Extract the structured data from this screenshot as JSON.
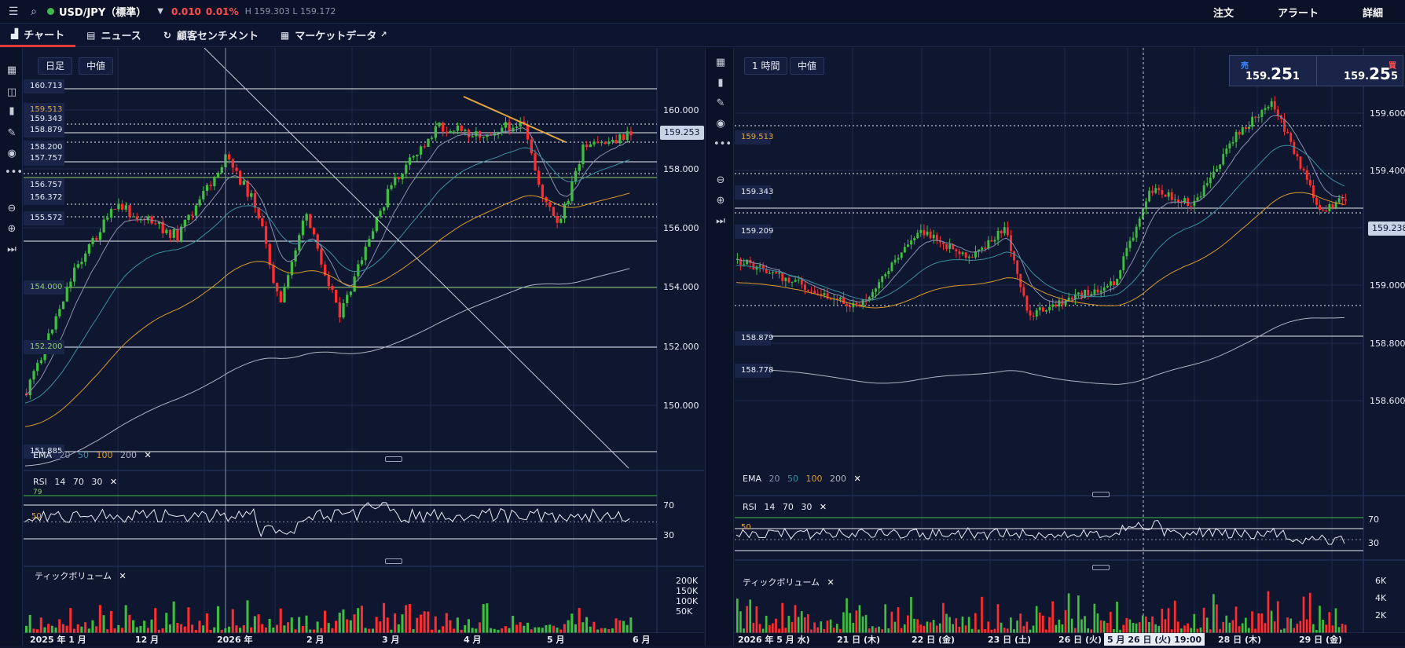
{
  "header": {
    "symbol": "USD/JPY（標準）",
    "change": "0.010",
    "change_pct": "0.01%",
    "hl": "H 159.303 L 159.172",
    "menu": [
      "注文",
      "アラート",
      "詳細"
    ]
  },
  "tabs": [
    {
      "label": "チャート",
      "icon": "chart-icon"
    },
    {
      "label": "ニュース",
      "icon": "news-icon"
    },
    {
      "label": "顧客センチメント",
      "icon": "refresh-icon"
    },
    {
      "label": "マーケットデータ",
      "icon": "clipboard-icon"
    }
  ],
  "trade": {
    "sell_label": "売",
    "sell_small": "159.",
    "sell_big": "25",
    "sell_last": "1",
    "buy_label": "買",
    "buy_small": "159.",
    "buy_big": "25",
    "buy_last": "5"
  },
  "left": {
    "timeframe": "日足",
    "price_type": "中値",
    "current": "159.253",
    "price_labels": [
      {
        "t": "160.713",
        "c": "w"
      },
      {
        "t": "159.513",
        "c": "or"
      },
      {
        "t": "159.343",
        "c": "w"
      },
      {
        "t": "158.879",
        "c": "w"
      },
      {
        "t": "158.200",
        "c": "w"
      },
      {
        "t": "157.757",
        "c": "w"
      },
      {
        "t": "156.757",
        "c": "w"
      },
      {
        "t": "156.372",
        "c": "w"
      },
      {
        "t": "155.572",
        "c": "w"
      },
      {
        "t": "154.000",
        "c": "gr"
      },
      {
        "t": "152.200",
        "c": "gr"
      },
      {
        "t": "151.885",
        "c": "w"
      }
    ],
    "yaxis": [
      "160.000",
      "158.000",
      "156.000",
      "154.000",
      "152.000",
      "150.000"
    ],
    "ema": {
      "label": "EMA",
      "p": [
        "20",
        "50",
        "100",
        "200"
      ]
    },
    "rsi": {
      "label": "RSI",
      "p": [
        "14",
        "70",
        "30"
      ],
      "levels": [
        "70",
        "30"
      ],
      "side": [
        "79",
        "50"
      ]
    },
    "vol": {
      "label": "ティックボリューム",
      "levels": [
        "200K",
        "150K",
        "100K",
        "50K"
      ]
    },
    "xaxis": [
      "2025 年 1 月",
      "12 月",
      "2026 年",
      "2 月",
      "3 月",
      "4 月",
      "5 月",
      "6 月"
    ]
  },
  "right": {
    "timeframe": "1 時間",
    "price_type": "中値",
    "current": "159.238",
    "price_labels": [
      {
        "t": "159.513",
        "c": "or"
      },
      {
        "t": "159.343",
        "c": "w"
      },
      {
        "t": "159.209",
        "c": "w"
      },
      {
        "t": "158.879",
        "c": "w"
      },
      {
        "t": "158.778",
        "c": "w"
      }
    ],
    "yaxis": [
      "159.600",
      "159.400",
      "159.200",
      "159.000",
      "158.800",
      "158.600"
    ],
    "ema": {
      "label": "EMA",
      "p": [
        "20",
        "50",
        "100",
        "200"
      ]
    },
    "rsi": {
      "label": "RSI",
      "p": [
        "14",
        "70",
        "30"
      ],
      "levels": [
        "70",
        "30"
      ],
      "side": [
        "50"
      ]
    },
    "vol": {
      "label": "ティックボリューム",
      "levels": [
        "6K",
        "4K",
        "2K"
      ]
    },
    "xaxis": [
      "2026 年 5 月 水)",
      "21 日 (木)",
      "22 日 (金)",
      "23 日 (土)",
      "26 日 (火)",
      "5 月 26 日 (火) 19:00",
      "28 日 (木)",
      "29 日 (金)"
    ]
  },
  "colors": {
    "up": "#3fbf3f",
    "down": "#ff2d2d",
    "ema20": "#8a8fb0",
    "ema50": "#3a8fa0",
    "ema100": "#d99a2a",
    "ema200": "#b0b4c4"
  }
}
